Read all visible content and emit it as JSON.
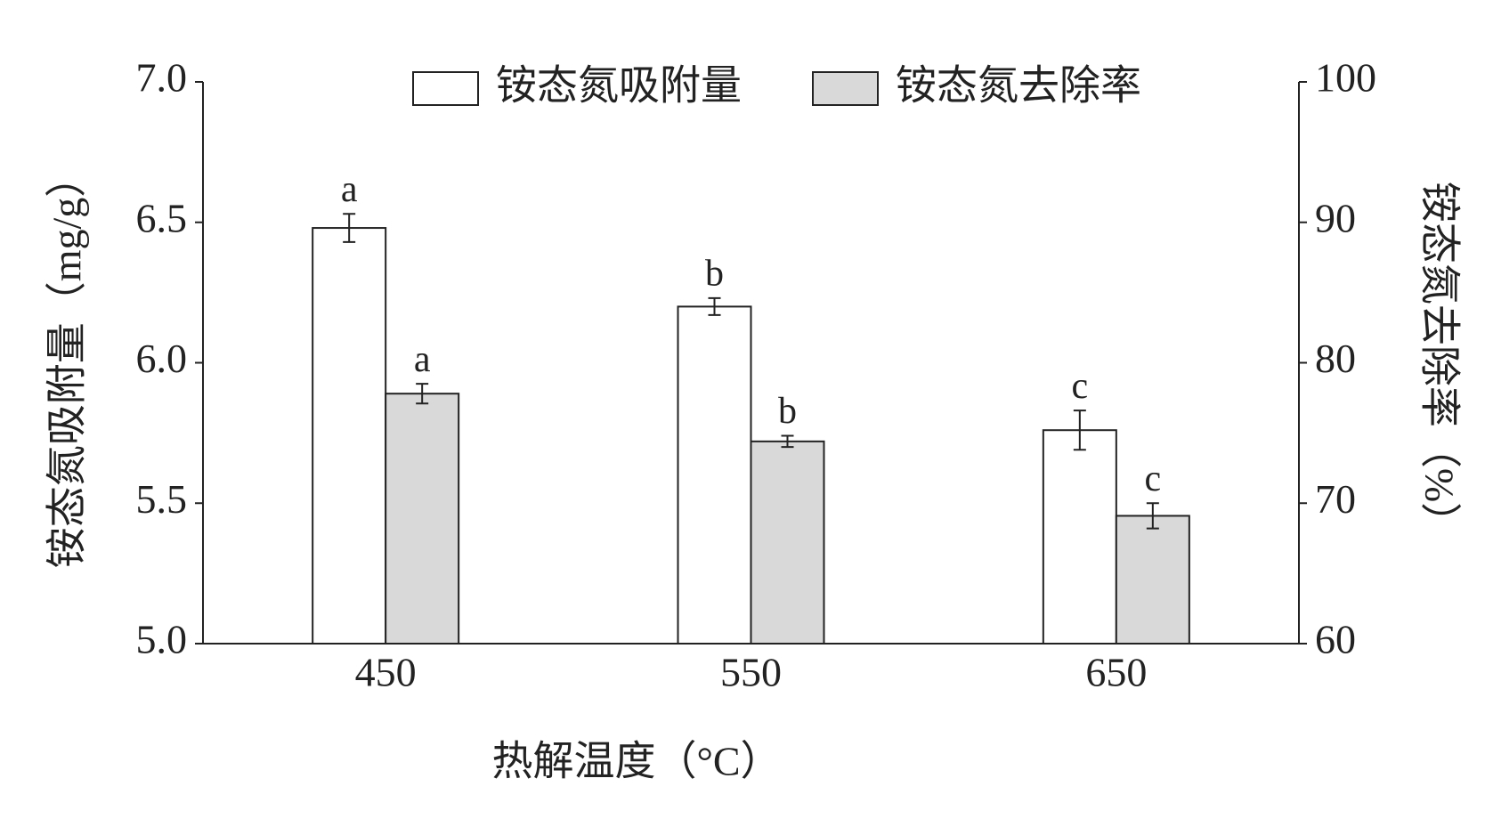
{
  "chart_data": {
    "type": "bar",
    "xlabel": "热解温度（°C）",
    "ylabel": "铵态氮吸附量（mg/g）",
    "y2label": "铵态氮去除率（%）",
    "categories": [
      "450",
      "550",
      "650"
    ],
    "series": [
      {
        "name": "铵态氮吸附量",
        "color": "#ffffff",
        "values": [
          6.48,
          6.2,
          5.76
        ],
        "errors": [
          0.05,
          0.03,
          0.07
        ],
        "labels": [
          "a",
          "b",
          "c"
        ]
      },
      {
        "name": "铵态氮去除率",
        "color": "#d9d9d9",
        "axis": "y2",
        "values": [
          77.8,
          74.4,
          69.1
        ],
        "errors": [
          0.7,
          0.4,
          0.9
        ],
        "labels": [
          "a",
          "b",
          "c"
        ]
      }
    ],
    "ylim": [
      5.0,
      7.0
    ],
    "yticks": [
      {
        "value": 5,
        "label": "5.0"
      },
      5.5,
      {
        "value": 6,
        "label": "6.0"
      },
      6.5,
      {
        "value": 7,
        "label": "7.0"
      }
    ],
    "y2lim": [
      60,
      100
    ],
    "y2ticks": [
      60,
      70,
      80,
      90,
      100
    ],
    "legend": "top"
  }
}
